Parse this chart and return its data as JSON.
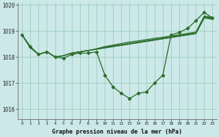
{
  "title": "Graphe pression niveau de la mer (hPa)",
  "bg_color": "#cce8e8",
  "grid_color": "#99ccbb",
  "line_color": "#2d6e2d",
  "xlim": [
    -0.5,
    23.5
  ],
  "ylim": [
    1015.6,
    1020.1
  ],
  "yticks": [
    1016,
    1017,
    1018,
    1019,
    1020
  ],
  "xticks": [
    0,
    1,
    2,
    3,
    4,
    5,
    6,
    7,
    8,
    9,
    10,
    11,
    12,
    13,
    14,
    15,
    16,
    17,
    18,
    19,
    20,
    21,
    22,
    23
  ],
  "series_main": [
    1018.85,
    1018.4,
    1018.1,
    1018.2,
    1018.0,
    1017.95,
    1018.1,
    1018.15,
    1018.15,
    1018.2,
    1017.3,
    1016.85,
    1016.6,
    1016.4,
    1016.6,
    1016.65,
    1017.0,
    1017.3,
    1018.85,
    1018.95,
    1019.1,
    1019.4,
    1019.72,
    1019.5
  ],
  "bundle_lines": [
    [
      1018.85,
      1018.4,
      1018.1,
      1018.2,
      1018.0,
      1018.05,
      1018.15,
      1018.2,
      1018.25,
      1018.3,
      1018.35,
      1018.4,
      1018.45,
      1018.5,
      1018.55,
      1018.6,
      1018.65,
      1018.7,
      1018.75,
      1018.8,
      1018.85,
      1018.9,
      1019.5,
      1019.45
    ],
    [
      1018.85,
      1018.38,
      1018.1,
      1018.2,
      1018.0,
      1018.05,
      1018.15,
      1018.2,
      1018.25,
      1018.3,
      1018.35,
      1018.4,
      1018.45,
      1018.5,
      1018.55,
      1018.6,
      1018.65,
      1018.7,
      1018.75,
      1018.8,
      1018.85,
      1018.9,
      1019.52,
      1019.47
    ],
    [
      1018.85,
      1018.36,
      1018.1,
      1018.2,
      1018.0,
      1018.05,
      1018.15,
      1018.2,
      1018.25,
      1018.3,
      1018.38,
      1018.43,
      1018.48,
      1018.53,
      1018.58,
      1018.63,
      1018.68,
      1018.73,
      1018.78,
      1018.83,
      1018.88,
      1018.93,
      1019.55,
      1019.5
    ],
    [
      1018.85,
      1018.35,
      1018.1,
      1018.2,
      1018.0,
      1018.05,
      1018.15,
      1018.2,
      1018.25,
      1018.32,
      1018.4,
      1018.46,
      1018.52,
      1018.58,
      1018.62,
      1018.67,
      1018.72,
      1018.76,
      1018.81,
      1018.86,
      1018.91,
      1018.96,
      1019.58,
      1019.53
    ]
  ]
}
